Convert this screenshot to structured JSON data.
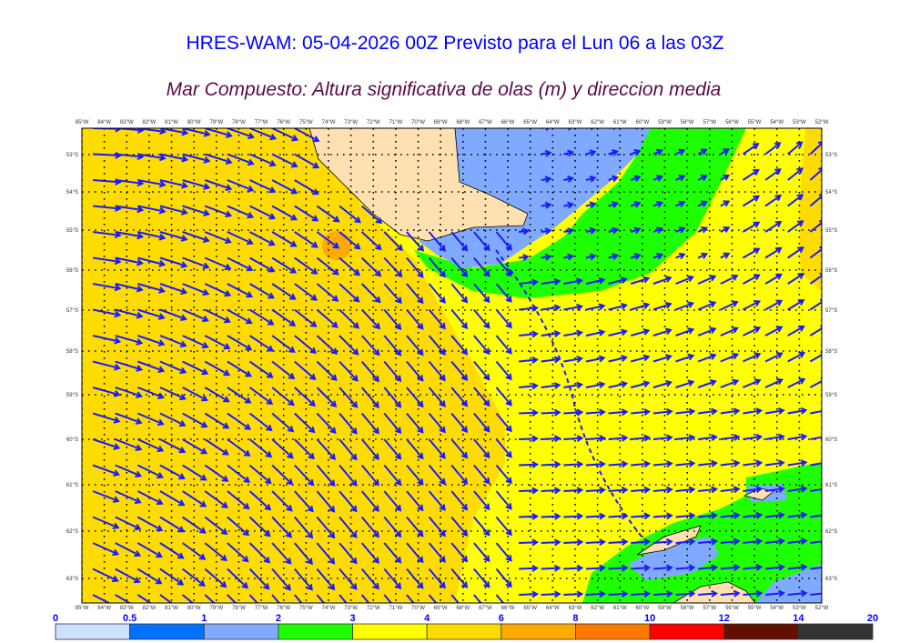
{
  "header": {
    "title": "HRES-WAM: 05-04-2026 00Z Previsto para el Lun 06 a las 03Z",
    "subtitle": "Mar Compuesto: Altura significativa de olas (m) y direccion media"
  },
  "map": {
    "lon_labels": [
      "85°W",
      "84°W",
      "83°W",
      "82°W",
      "81°W",
      "80°W",
      "79°W",
      "78°W",
      "77°W",
      "76°W",
      "75°W",
      "74°W",
      "73°W",
      "72°W",
      "71°W",
      "70°W",
      "69°W",
      "68°W",
      "67°W",
      "66°W",
      "65°W",
      "64°W",
      "63°W",
      "62°W",
      "61°W",
      "60°W",
      "59°W",
      "58°W",
      "57°W",
      "56°W",
      "55°W",
      "54°W",
      "53°W",
      "52°W"
    ],
    "lat_labels": [
      "53°S",
      "54°S",
      "55°S",
      "56°S",
      "57°S",
      "58°S",
      "59°S",
      "60°S",
      "61°S",
      "62°S",
      "63°S"
    ],
    "colors": {
      "land": "#ffe0b0",
      "arrow": "#1a1aff"
    }
  },
  "colorbar": {
    "ticks": [
      "0",
      "0.5",
      "1",
      "2",
      "3",
      "4",
      "6",
      "8",
      "10",
      "12",
      "14",
      "20"
    ],
    "colors": [
      "#cce0ff",
      "#0070ff",
      "#7faaff",
      "#1eff00",
      "#ffff00",
      "#ffdc00",
      "#ffaa00",
      "#ff7800",
      "#ff0000",
      "#641000",
      "#333333"
    ]
  }
}
